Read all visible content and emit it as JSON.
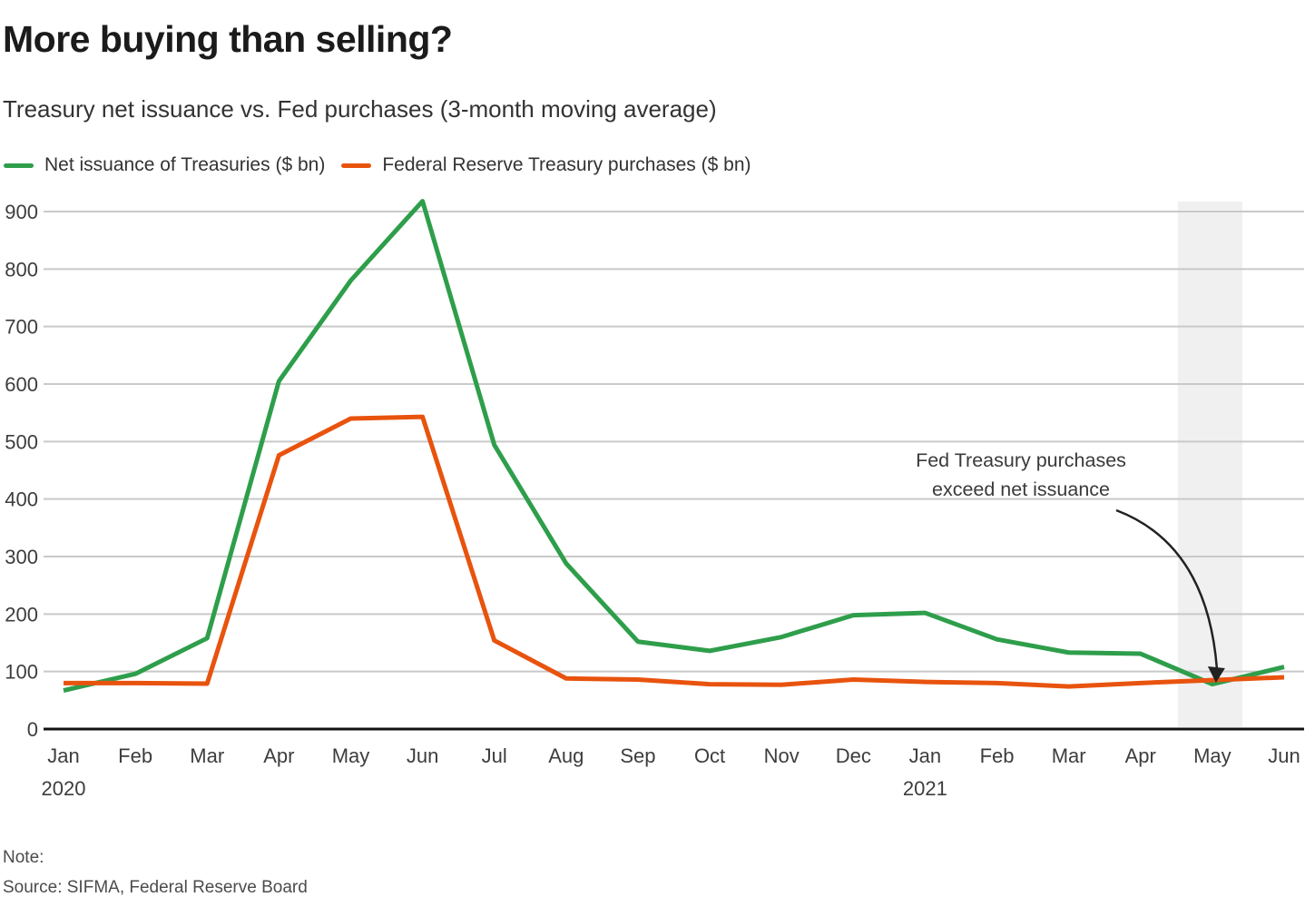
{
  "header": {
    "title": "More buying than selling?",
    "subtitle": "Treasury net issuance vs. Fed purchases (3-month moving average)"
  },
  "chart_data": {
    "type": "line",
    "x_tick_labels": [
      "Jan",
      "Feb",
      "Mar",
      "Apr",
      "May",
      "Jun",
      "Jul",
      "Aug",
      "Sep",
      "Oct",
      "Nov",
      "Dec",
      "Jan",
      "Feb",
      "Mar",
      "Apr",
      "May",
      "Jun"
    ],
    "x_year_labels": [
      {
        "index": 0,
        "label": "2020"
      },
      {
        "index": 12,
        "label": "2021"
      }
    ],
    "series": [
      {
        "name": "Net issuance of Treasuries ($ bn)",
        "color": "#2e9e4b",
        "values": [
          67,
          96,
          158,
          605,
          780,
          918,
          494,
          288,
          152,
          136,
          160,
          198,
          202,
          156,
          133,
          131,
          78,
          108
        ]
      },
      {
        "name": "Federal Reserve Treasury purchases ($ bn)",
        "color": "#e8530e",
        "values": [
          80,
          80,
          79,
          476,
          540,
          543,
          154,
          88,
          86,
          78,
          77,
          86,
          82,
          80,
          74,
          80,
          85,
          90
        ]
      }
    ],
    "ylim": [
      0,
      900
    ],
    "yticks": [
      0,
      100,
      200,
      300,
      400,
      500,
      600,
      700,
      800,
      900
    ],
    "grid": "horizontal",
    "legend_position": "top-left",
    "highlight_band": {
      "label": "May 2021",
      "x_from_index": 15.52,
      "x_to_index": 16.42,
      "color": "#f0f0f0"
    },
    "annotation": {
      "text_lines": [
        "Fed  Treasury purchases",
        "exceed net issuance"
      ],
      "arrow_to_index": 16
    }
  },
  "footer": {
    "note_label": "Note:",
    "source": "Source: SIFMA, Federal Reserve Board"
  },
  "colors": {
    "gridline": "#c9c9c9",
    "axis": "#111111",
    "tick_text": "#3d3d3d",
    "annotation_text": "#3a3a3a",
    "arrow": "#222222"
  }
}
